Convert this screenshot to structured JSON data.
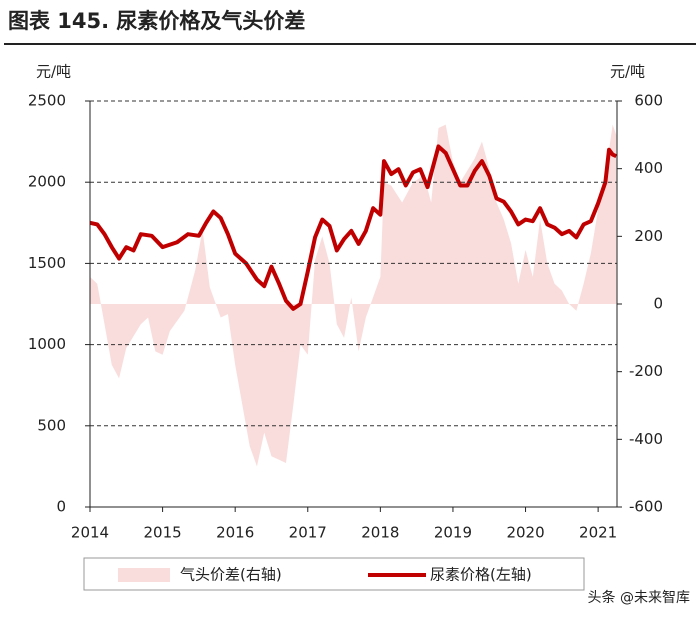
{
  "chart_data": {
    "type": "line-area",
    "title": "图表 145. 尿素价格及气头价差",
    "y_label": "元/吨",
    "y2_label": "元/吨",
    "xlim": [
      2014,
      2021.26
    ],
    "xticks": [
      2014,
      2015,
      2016,
      2017,
      2018,
      2019,
      2020,
      2021
    ],
    "ylim": [
      0,
      2500
    ],
    "yticks": [
      0,
      500,
      1000,
      1500,
      2000,
      2500
    ],
    "y2lim": [
      -600,
      600
    ],
    "y2ticks": [
      -600,
      -400,
      -200,
      0,
      200,
      400,
      600
    ],
    "grid": true,
    "series": [
      {
        "name": "气头价差(右轴)",
        "kind": "area",
        "axis": "y2",
        "color": "#f9dddc",
        "x": [
          2014.0,
          2014.1,
          2014.2,
          2014.3,
          2014.4,
          2014.5,
          2014.7,
          2014.8,
          2014.9,
          2015.0,
          2015.1,
          2015.3,
          2015.45,
          2015.55,
          2015.65,
          2015.8,
          2015.9,
          2016.0,
          2016.1,
          2016.2,
          2016.3,
          2016.4,
          2016.5,
          2016.6,
          2016.7,
          2016.8,
          2016.9,
          2017.0,
          2017.1,
          2017.2,
          2017.3,
          2017.4,
          2017.5,
          2017.6,
          2017.7,
          2017.8,
          2017.9,
          2018.0,
          2018.05,
          2018.15,
          2018.3,
          2018.45,
          2018.6,
          2018.7,
          2018.8,
          2018.9,
          2019.0,
          2019.1,
          2019.3,
          2019.4,
          2019.5,
          2019.6,
          2019.7,
          2019.8,
          2019.9,
          2020.0,
          2020.1,
          2020.2,
          2020.3,
          2020.4,
          2020.5,
          2020.6,
          2020.7,
          2020.8,
          2020.9,
          2021.0,
          2021.1,
          2021.2,
          2021.25
        ],
        "values": [
          80,
          60,
          -60,
          -180,
          -220,
          -130,
          -60,
          -40,
          -140,
          -150,
          -80,
          -20,
          100,
          220,
          50,
          -40,
          -30,
          -180,
          -300,
          -420,
          -480,
          -380,
          -450,
          -460,
          -470,
          -300,
          -120,
          -150,
          130,
          200,
          120,
          -60,
          -100,
          20,
          -140,
          -40,
          20,
          80,
          360,
          350,
          300,
          360,
          380,
          300,
          520,
          530,
          420,
          360,
          430,
          480,
          400,
          300,
          250,
          180,
          60,
          160,
          80,
          250,
          120,
          60,
          40,
          0,
          -20,
          60,
          150,
          280,
          380,
          530,
          500
        ]
      },
      {
        "name": "尿素价格(左轴)",
        "kind": "line",
        "axis": "y",
        "color": "#c00000",
        "x": [
          2014.0,
          2014.1,
          2014.2,
          2014.3,
          2014.4,
          2014.5,
          2014.6,
          2014.7,
          2014.85,
          2015.0,
          2015.2,
          2015.35,
          2015.5,
          2015.6,
          2015.7,
          2015.8,
          2015.9,
          2016.0,
          2016.15,
          2016.3,
          2016.4,
          2016.5,
          2016.6,
          2016.7,
          2016.8,
          2016.9,
          2017.0,
          2017.1,
          2017.2,
          2017.3,
          2017.4,
          2017.5,
          2017.6,
          2017.7,
          2017.8,
          2017.9,
          2018.0,
          2018.05,
          2018.15,
          2018.25,
          2018.35,
          2018.45,
          2018.55,
          2018.65,
          2018.8,
          2018.9,
          2019.0,
          2019.1,
          2019.2,
          2019.3,
          2019.4,
          2019.5,
          2019.6,
          2019.7,
          2019.8,
          2019.9,
          2020.0,
          2020.1,
          2020.2,
          2020.3,
          2020.4,
          2020.5,
          2020.6,
          2020.7,
          2020.8,
          2020.9,
          2021.0,
          2021.1,
          2021.15,
          2021.2,
          2021.25
        ],
        "values": [
          1750,
          1740,
          1680,
          1600,
          1530,
          1600,
          1580,
          1680,
          1670,
          1600,
          1630,
          1680,
          1670,
          1750,
          1820,
          1780,
          1680,
          1560,
          1500,
          1400,
          1360,
          1480,
          1380,
          1270,
          1220,
          1250,
          1450,
          1660,
          1770,
          1730,
          1580,
          1650,
          1700,
          1620,
          1700,
          1840,
          1800,
          2130,
          2050,
          2080,
          1980,
          2060,
          2080,
          1970,
          2220,
          2180,
          2080,
          1980,
          1980,
          2070,
          2130,
          2040,
          1900,
          1880,
          1820,
          1740,
          1770,
          1760,
          1840,
          1740,
          1720,
          1680,
          1700,
          1660,
          1740,
          1760,
          1870,
          2000,
          2200,
          2170,
          2160
        ]
      }
    ],
    "watermark": "头条 @未来智库"
  }
}
